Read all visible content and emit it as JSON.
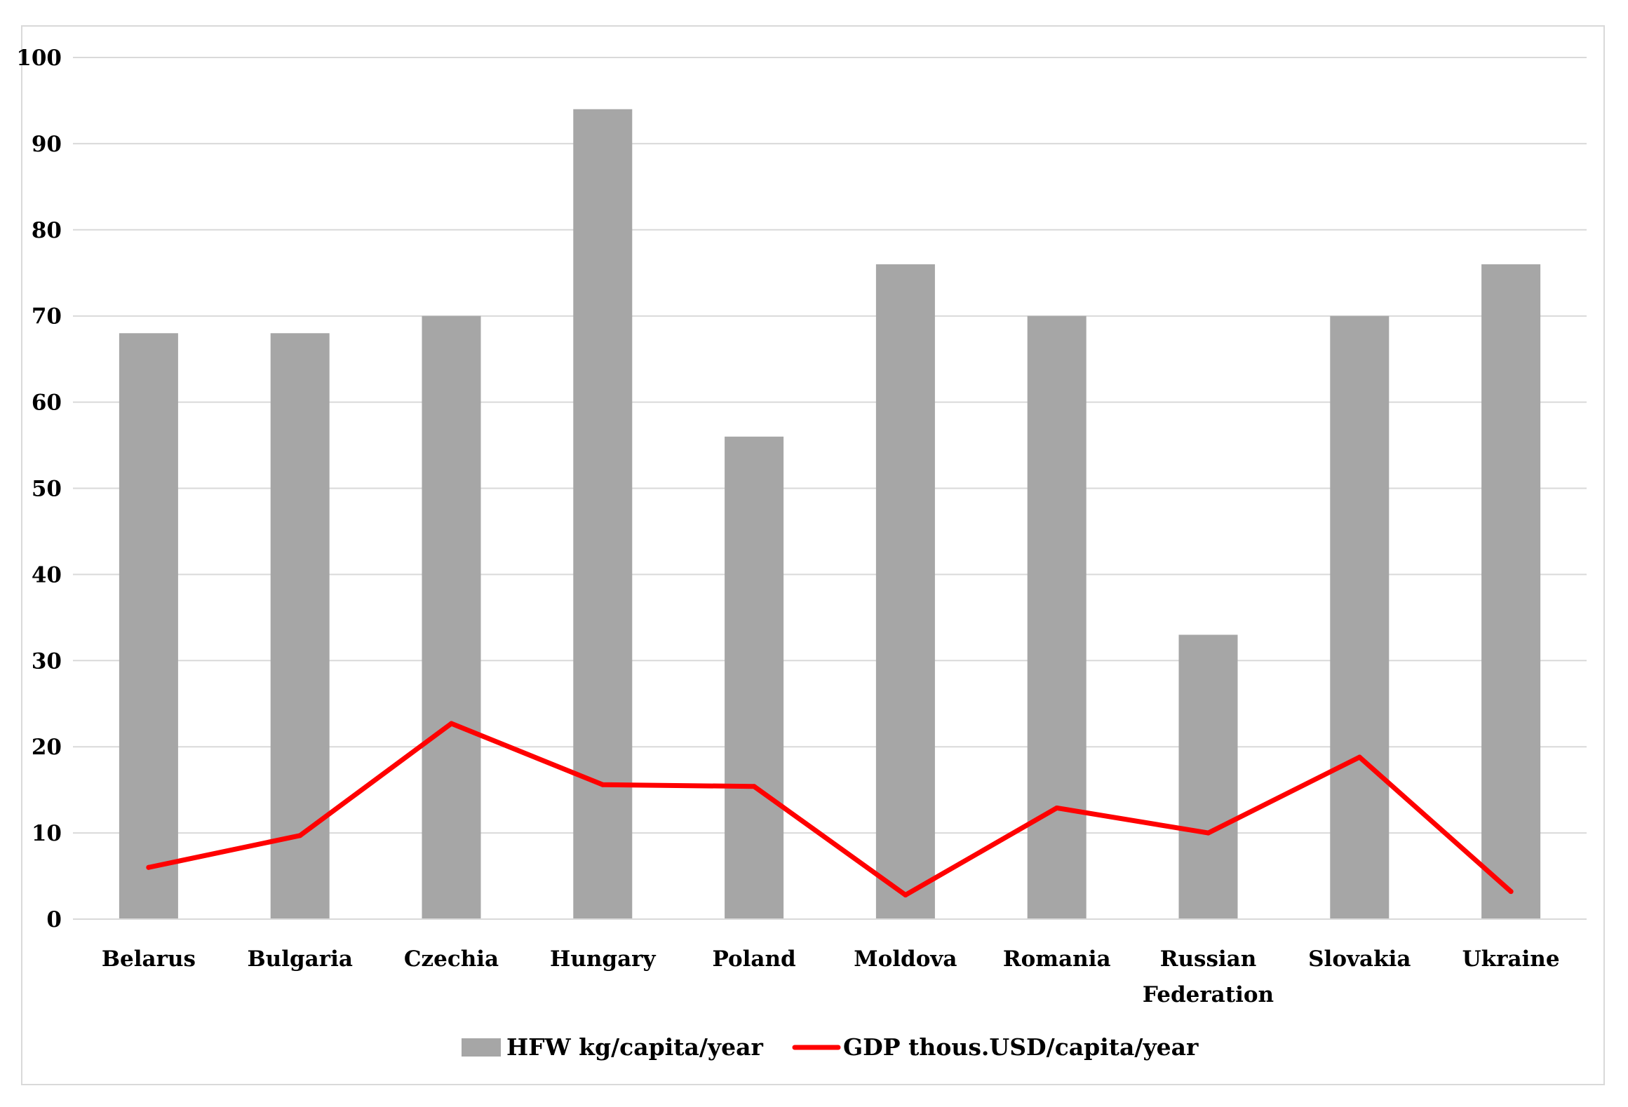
{
  "chart_data": {
    "type": "bar",
    "categories": [
      [
        "Belarus"
      ],
      [
        "Bulgaria"
      ],
      [
        "Czechia"
      ],
      [
        "Hungary"
      ],
      [
        "Poland"
      ],
      [
        "Moldova"
      ],
      [
        "Romania"
      ],
      [
        "Russian",
        "Federation"
      ],
      [
        "Slovakia"
      ],
      [
        "Ukraine"
      ]
    ],
    "series": [
      {
        "name": "HFW kg/capita/year",
        "type": "bar",
        "color": "#a6a6a6",
        "values": [
          68,
          68,
          70,
          94,
          56,
          76,
          70,
          33,
          70,
          76
        ]
      },
      {
        "name": "GDP thous.USD/capita/year",
        "type": "line",
        "color": "#ff0000",
        "values": [
          6.0,
          9.7,
          22.7,
          15.6,
          15.4,
          2.8,
          12.9,
          10.0,
          18.8,
          3.2
        ]
      }
    ],
    "ylim": [
      0,
      100
    ],
    "yticks": [
      0,
      10,
      20,
      30,
      40,
      50,
      60,
      70,
      80,
      90,
      100
    ],
    "grid": true,
    "legend_position": "bottom"
  }
}
